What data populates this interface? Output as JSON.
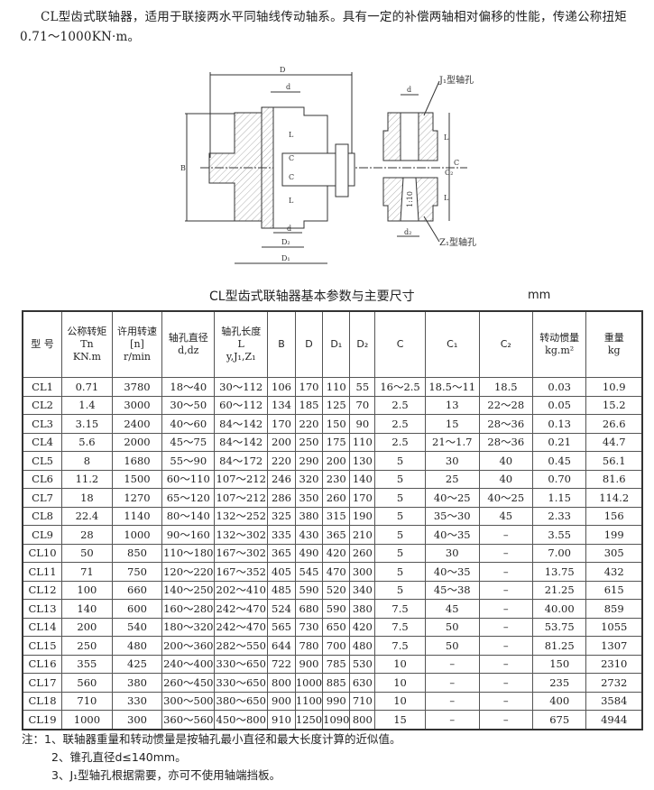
{
  "intro": "CL型齿式联轴器，适用于联接两水平同轴线传动轴系。具有一定的补偿两轴相对偏移的性能，传递公称扭矩0.71～1000KN·m。",
  "figure": {
    "labels": {
      "D": "D",
      "d": "d",
      "B": "B",
      "L": "L",
      "C": "C",
      "D2": "D₂",
      "D1": "D₁",
      "dz": "d₂",
      "J1": "J₁型轴孔",
      "Z1": "Z₁型轴孔",
      "taper": "1:10",
      "C2": "C₂"
    }
  },
  "table_title": "CL型齿式联轴器基本参数与主要尺寸",
  "unit": "mm",
  "headers": [
    [
      "型 号"
    ],
    [
      "公称转矩",
      "Tn",
      "KN.m"
    ],
    [
      "许用转速",
      "[n]",
      "r/min"
    ],
    [
      "轴孔直径",
      "d,dz"
    ],
    [
      "轴孔长度",
      "L",
      "y,J₁,Z₁"
    ],
    [
      "B"
    ],
    [
      "D"
    ],
    [
      "D₁"
    ],
    [
      "D₂"
    ],
    [
      "C"
    ],
    [
      "C₁"
    ],
    [
      "C₂"
    ],
    [
      "转动惯量",
      "kg.m²"
    ],
    [
      "重量",
      "kg"
    ]
  ],
  "rows": [
    [
      "CL1",
      "0.71",
      "3780",
      "18～40",
      "30～112",
      "106",
      "170",
      "110",
      "55",
      "16～2.5",
      "18.5～11",
      "18.5",
      "0.03",
      "10.9"
    ],
    [
      "CL2",
      "1.4",
      "3000",
      "30～50",
      "60～112",
      "134",
      "185",
      "125",
      "70",
      "2.5",
      "13",
      "22～28",
      "0.05",
      "15.2"
    ],
    [
      "CL3",
      "3.15",
      "2400",
      "40～60",
      "84～142",
      "170",
      "220",
      "150",
      "90",
      "2.5",
      "15",
      "28～36",
      "0.13",
      "26.6"
    ],
    [
      "CL4",
      "5.6",
      "2000",
      "45～75",
      "84～142",
      "200",
      "250",
      "175",
      "110",
      "2.5",
      "21～1.7",
      "28～36",
      "0.21",
      "44.7"
    ],
    [
      "CL5",
      "8",
      "1680",
      "55～90",
      "84～172",
      "220",
      "290",
      "200",
      "130",
      "5",
      "30",
      "40",
      "0.45",
      "56.1"
    ],
    [
      "CL6",
      "11.2",
      "1500",
      "60～110",
      "107～212",
      "246",
      "320",
      "230",
      "140",
      "5",
      "25",
      "40",
      "0.70",
      "81.6"
    ],
    [
      "CL7",
      "18",
      "1270",
      "65～120",
      "107～212",
      "286",
      "350",
      "260",
      "170",
      "5",
      "40～25",
      "40～25",
      "1.15",
      "114.2"
    ],
    [
      "CL8",
      "22.4",
      "1140",
      "80～140",
      "132～252",
      "325",
      "380",
      "315",
      "190",
      "5",
      "35～30",
      "45",
      "2.33",
      "156"
    ],
    [
      "CL9",
      "28",
      "1000",
      "90～160",
      "132～302",
      "335",
      "430",
      "365",
      "210",
      "5",
      "40～35",
      "–",
      "3.55",
      "199"
    ],
    [
      "CL10",
      "50",
      "850",
      "110～180",
      "167～302",
      "365",
      "490",
      "420",
      "260",
      "5",
      "30",
      "–",
      "7.00",
      "305"
    ],
    [
      "CL11",
      "71",
      "750",
      "120～220",
      "167～352",
      "405",
      "545",
      "470",
      "300",
      "5",
      "40～35",
      "–",
      "13.75",
      "432"
    ],
    [
      "CL12",
      "100",
      "660",
      "140～250",
      "202～410",
      "485",
      "590",
      "520",
      "340",
      "5",
      "45～38",
      "–",
      "21.25",
      "615"
    ],
    [
      "CL13",
      "140",
      "600",
      "160～280",
      "242～470",
      "524",
      "680",
      "590",
      "380",
      "7.5",
      "45",
      "–",
      "40.00",
      "859"
    ],
    [
      "CL14",
      "200",
      "540",
      "180～320",
      "242～470",
      "565",
      "730",
      "650",
      "420",
      "7.5",
      "50",
      "–",
      "53.75",
      "1055"
    ],
    [
      "CL15",
      "250",
      "480",
      "200～360",
      "282～550",
      "644",
      "780",
      "700",
      "480",
      "7.5",
      "50",
      "–",
      "81.25",
      "1307"
    ],
    [
      "CL16",
      "355",
      "425",
      "240～400",
      "330～650",
      "722",
      "900",
      "785",
      "530",
      "10",
      "–",
      "–",
      "150",
      "2310"
    ],
    [
      "CL17",
      "560",
      "380",
      "260～450",
      "330～650",
      "800",
      "1000",
      "885",
      "630",
      "10",
      "–",
      "–",
      "235",
      "2732"
    ],
    [
      "CL18",
      "710",
      "330",
      "300～500",
      "380～650",
      "900",
      "1100",
      "990",
      "710",
      "10",
      "–",
      "–",
      "400",
      "3584"
    ],
    [
      "CL19",
      "1000",
      "300",
      "360～560",
      "450～800",
      "910",
      "1250",
      "1090",
      "800",
      "15",
      "–",
      "–",
      "675",
      "4944"
    ]
  ],
  "notes": [
    "注：1、联轴器重量和转动惯量是按轴孔最小直径和最大长度计算的近似值。",
    "2、锥孔直径d≤140mm。",
    "3、J₁型轴孔根据需要，亦可不使用轴端挡板。"
  ]
}
